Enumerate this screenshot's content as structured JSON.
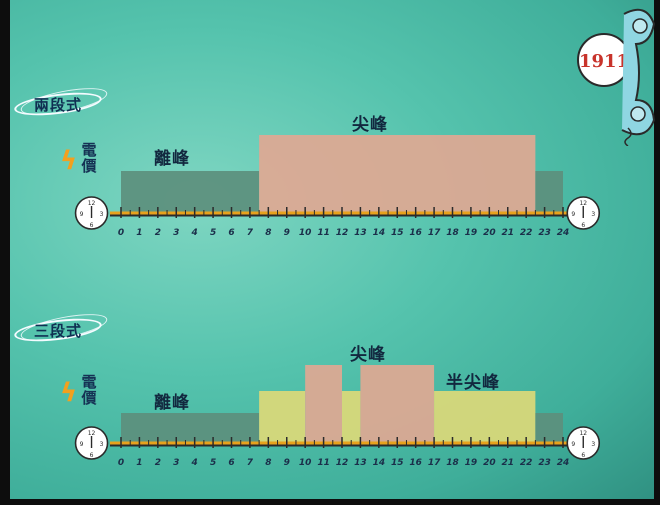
{
  "phone_badge": {
    "number": "1911"
  },
  "schemes": [
    {
      "label": "兩段式",
      "price_label": "電價",
      "periods": {
        "off_peak": "離峰",
        "peak": "尖峰"
      },
      "blocks": [
        {
          "type": "off_peak",
          "start_hour": 0,
          "end_hour": 7.5
        },
        {
          "type": "peak",
          "start_hour": 7.5,
          "end_hour": 22.5
        },
        {
          "type": "off_peak",
          "start_hour": 22.5,
          "end_hour": 24
        }
      ]
    },
    {
      "label": "三段式",
      "price_label": "電價",
      "periods": {
        "off_peak": "離峰",
        "peak": "尖峰",
        "mid_peak": "半尖峰"
      },
      "blocks": [
        {
          "type": "off_peak",
          "start_hour": 0,
          "end_hour": 7.5
        },
        {
          "type": "mid_peak",
          "start_hour": 7.5,
          "end_hour": 10
        },
        {
          "type": "peak",
          "start_hour": 10,
          "end_hour": 12
        },
        {
          "type": "mid_peak",
          "start_hour": 12,
          "end_hour": 13
        },
        {
          "type": "peak",
          "start_hour": 13,
          "end_hour": 17
        },
        {
          "type": "mid_peak",
          "start_hour": 17,
          "end_hour": 22.5
        },
        {
          "type": "off_peak",
          "start_hour": 22.5,
          "end_hour": 24
        }
      ]
    }
  ],
  "hour_ticks": [
    "0",
    "1",
    "2",
    "3",
    "4",
    "5",
    "6",
    "7",
    "8",
    "9",
    "10",
    "11",
    "12",
    "13",
    "14",
    "15",
    "16",
    "17",
    "18",
    "19",
    "20",
    "21",
    "22",
    "23",
    "24"
  ],
  "clock_digits": {
    "top": "12",
    "left": "9",
    "right": "3",
    "bottom": "6"
  },
  "colors": {
    "off_peak": "#5c8f7d",
    "peak": "#e0a893",
    "mid_peak": "#dcd978",
    "axis_line": "#e8a21c",
    "axis_dark": "#2b2b2b"
  }
}
